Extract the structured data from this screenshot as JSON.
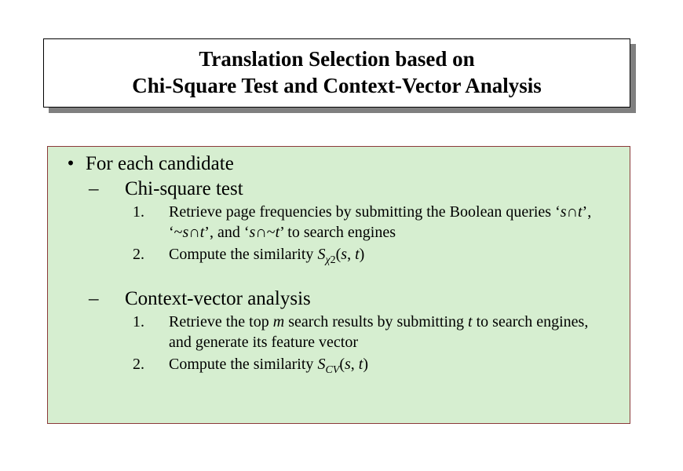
{
  "colors": {
    "page_bg": "#ffffff",
    "title_bg": "#ffffff",
    "title_shadow": "#808080",
    "title_border": "#000000",
    "content_bg": "#d6eed0",
    "content_border": "#8b3a3a",
    "text": "#000000"
  },
  "fonts": {
    "family": "Times New Roman",
    "title_size_pt": 27,
    "body_size_pt": 25,
    "sub_body_size_pt": 20
  },
  "title": {
    "line1": "Translation Selection based on",
    "line2": "Chi-Square Test and Context-Vector Analysis"
  },
  "content": {
    "bullet_level1": "•",
    "bullet_level2": "–",
    "item1": {
      "label": "For each candidate",
      "sub1": {
        "label": "Chi-square test",
        "step1": {
          "num": "1.",
          "prefix": "Retrieve page frequencies by submitting the Boolean queries ‘",
          "q1_s": "s",
          "q1_op": "∩",
          "q1_t": "t",
          "mid1": "’, ‘~",
          "q2_s": "s",
          "q2_op": "∩",
          "q2_t": "t",
          "mid2": "’, and ‘",
          "q3_s": "s",
          "q3_op": "∩~",
          "q3_t": "t",
          "suffix": "’ to search engines"
        },
        "step2": {
          "num": "2.",
          "prefix": "Compute the similarity ",
          "sym_S": "S",
          "sym_sub": "χ",
          "sym_sub2": "2",
          "open": "(",
          "arg_s": "s",
          "comma": ", ",
          "arg_t": "t",
          "close": ")"
        }
      },
      "sub2": {
        "label": "Context-vector analysis",
        "step1": {
          "num": "1.",
          "prefix": "Retrieve the top ",
          "m": "m",
          "mid": " search results by submitting ",
          "t": "t",
          "suffix": " to search engines, and generate its feature vector"
        },
        "step2": {
          "num": "2.",
          "prefix": "Compute the similarity ",
          "sym_S": "S",
          "sym_sub": "CV",
          "open": "(",
          "arg_s": "s",
          "comma": ", ",
          "arg_t": "t",
          "close": ")"
        }
      }
    }
  }
}
